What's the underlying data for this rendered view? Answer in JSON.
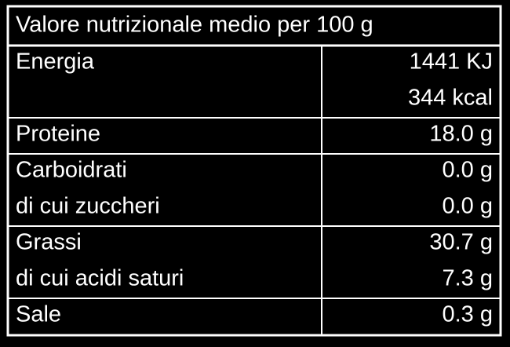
{
  "table": {
    "title": "Valore nutrizionale medio per 100 g",
    "rows": [
      {
        "labels": [
          "Energia"
        ],
        "values": [
          "1441 KJ",
          "344 kcal"
        ]
      },
      {
        "labels": [
          "Proteine"
        ],
        "values": [
          "18.0 g"
        ]
      },
      {
        "labels": [
          "Carboidrati",
          "di cui zuccheri"
        ],
        "values": [
          "0.0 g",
          "0.0 g"
        ]
      },
      {
        "labels": [
          "Grassi",
          "di cui acidi saturi"
        ],
        "values": [
          "30.7 g",
          "7.3 g"
        ]
      },
      {
        "labels": [
          "Sale"
        ],
        "values": [
          "0.3 g"
        ]
      }
    ]
  }
}
